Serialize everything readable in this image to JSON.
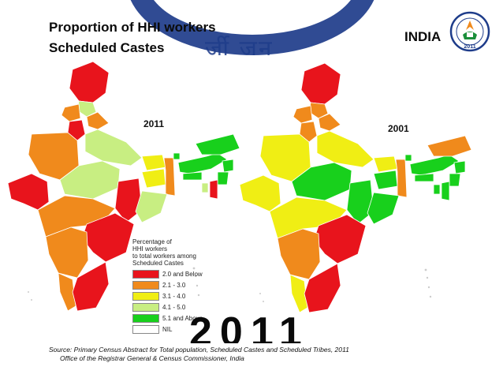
{
  "header": {
    "title_line1": "Proportion of HHI workers",
    "title_line2": "Scheduled Castes",
    "country": "INDIA"
  },
  "logo": {
    "icon": "census-india-2011-emblem",
    "year": "2011"
  },
  "maps": [
    {
      "year": "2011"
    },
    {
      "year": "2001"
    }
  ],
  "legend": {
    "heading": [
      "Percentage of",
      "HHI workers",
      "to total workers among",
      "Scheduled Castes"
    ],
    "items": [
      {
        "label": "2.0 and Below",
        "color": "#e8141c"
      },
      {
        "label": "2.1 - 3.0",
        "color": "#f08a1c"
      },
      {
        "label": "3.1 - 4.0",
        "color": "#f0ee14"
      },
      {
        "label": "4.1 - 5.0",
        "color": "#c8ee82"
      },
      {
        "label": "5.1 and Above",
        "color": "#18d01c"
      },
      {
        "label": "NIL",
        "color": "#ffffff"
      }
    ]
  },
  "big_year": "2011",
  "source": {
    "line1": "Source: Primary Census Abstract for Total population, Scheduled Castes and Scheduled Tribes, 2011",
    "line2": "Office of the Registrar General & Census Commissioner, India"
  }
}
